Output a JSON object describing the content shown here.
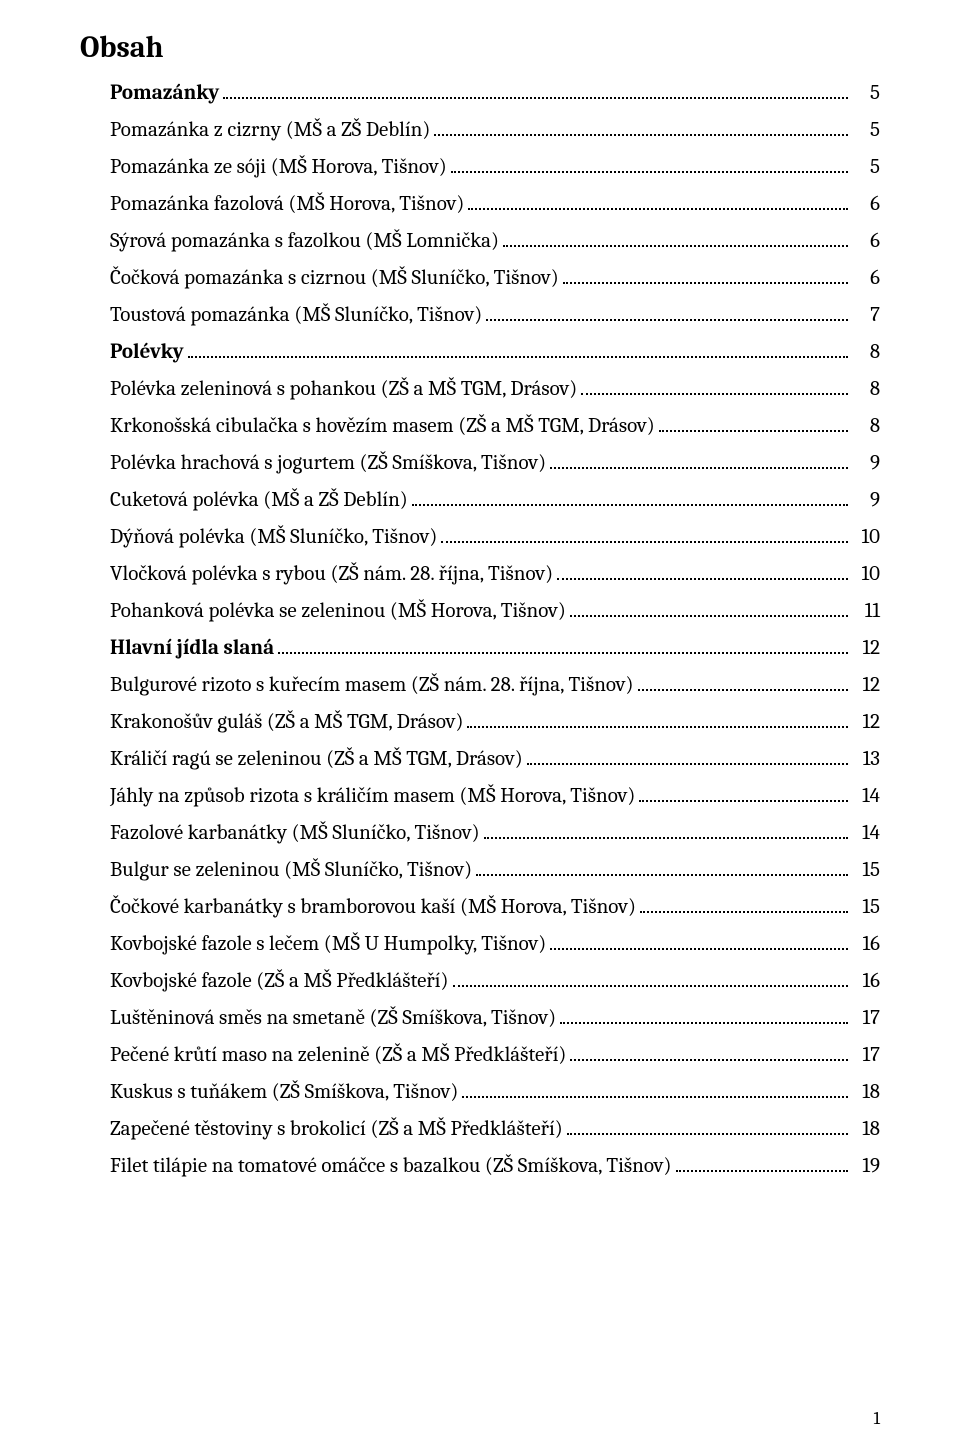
{
  "title": "Obsah",
  "page_number": "1",
  "toc": [
    {
      "label": "Pomazánky",
      "page": "5",
      "bold": true,
      "indent": true
    },
    {
      "label": "Pomazánka z cizrny (MŠ a ZŠ Deblín)",
      "page": "5",
      "bold": false,
      "indent": true
    },
    {
      "label": "Pomazánka ze sóji (MŠ Horova, Tišnov)",
      "page": "5",
      "bold": false,
      "indent": true
    },
    {
      "label": "Pomazánka fazolová (MŠ Horova, Tišnov)",
      "page": "6",
      "bold": false,
      "indent": true
    },
    {
      "label": "Sýrová pomazánka s fazolkou (MŠ Lomnička)",
      "page": "6",
      "bold": false,
      "indent": true
    },
    {
      "label": "Čočková pomazánka s cizrnou (MŠ Sluníčko, Tišnov)",
      "page": "6",
      "bold": false,
      "indent": true
    },
    {
      "label": "Toustová pomazánka (MŠ Sluníčko, Tišnov)",
      "page": "7",
      "bold": false,
      "indent": true
    },
    {
      "label": "Polévky",
      "page": "8",
      "bold": true,
      "indent": true
    },
    {
      "label": "Polévka zeleninová s pohankou (ZŠ a MŠ TGM, Drásov)",
      "page": "8",
      "bold": false,
      "indent": true
    },
    {
      "label": "Krkonošská cibulačka s hovězím masem (ZŠ a MŠ TGM, Drásov)",
      "page": "8",
      "bold": false,
      "indent": true
    },
    {
      "label": "Polévka hrachová s jogurtem (ZŠ Smíškova, Tišnov)",
      "page": "9",
      "bold": false,
      "indent": true
    },
    {
      "label": "Cuketová polévka (MŠ a ZŠ Deblín)",
      "page": "9",
      "bold": false,
      "indent": true
    },
    {
      "label": "Dýňová polévka (MŠ Sluníčko, Tišnov)",
      "page": "10",
      "bold": false,
      "indent": true
    },
    {
      "label": "Vločková polévka s rybou (ZŠ nám. 28. října, Tišnov)",
      "page": "10",
      "bold": false,
      "indent": true
    },
    {
      "label": "Pohanková polévka se zeleninou (MŠ Horova, Tišnov)",
      "page": "11",
      "bold": false,
      "indent": true
    },
    {
      "label": "Hlavní jídla slaná",
      "page": "12",
      "bold": true,
      "indent": true
    },
    {
      "label": "Bulgurové rizoto s kuřecím masem (ZŠ nám. 28. října, Tišnov)",
      "page": "12",
      "bold": false,
      "indent": true
    },
    {
      "label": "Krakonošův guláš (ZŠ a MŠ TGM, Drásov)",
      "page": "12",
      "bold": false,
      "indent": true
    },
    {
      "label": "Králičí ragú se zeleninou (ZŠ a MŠ TGM, Drásov)",
      "page": "13",
      "bold": false,
      "indent": true
    },
    {
      "label": "Jáhly na způsob rizota s králičím masem (MŠ Horova, Tišnov)",
      "page": "14",
      "bold": false,
      "indent": true
    },
    {
      "label": "Fazolové karbanátky (MŠ Sluníčko, Tišnov)",
      "page": "14",
      "bold": false,
      "indent": true
    },
    {
      "label": "Bulgur se zeleninou (MŠ Sluníčko, Tišnov)",
      "page": "15",
      "bold": false,
      "indent": true
    },
    {
      "label": "Čočkové karbanátky s bramborovou kaší (MŠ Horova, Tišnov)",
      "page": "15",
      "bold": false,
      "indent": true
    },
    {
      "label": "Kovbojské fazole s lečem (MŠ U Humpolky, Tišnov)",
      "page": "16",
      "bold": false,
      "indent": true
    },
    {
      "label": "Kovbojské fazole (ZŠ a MŠ Předklášteří)",
      "page": "16",
      "bold": false,
      "indent": true
    },
    {
      "label": "Luštěninová směs na smetaně (ZŠ Smíškova, Tišnov)",
      "page": "17",
      "bold": false,
      "indent": true
    },
    {
      "label": "Pečené krůtí maso na zelenině (ZŠ a MŠ Předklášteří)",
      "page": "17",
      "bold": false,
      "indent": true
    },
    {
      "label": "Kuskus s tuňákem (ZŠ Smíškova, Tišnov)",
      "page": "18",
      "bold": false,
      "indent": true
    },
    {
      "label": "Zapečené těstoviny s brokolicí (ZŠ a MŠ Předklášteří)",
      "page": "18",
      "bold": false,
      "indent": true
    },
    {
      "label": "Filet tilápie na tomatové omáčce s bazalkou (ZŠ Smíškova, Tišnov)",
      "page": "19",
      "bold": false,
      "indent": true
    }
  ]
}
